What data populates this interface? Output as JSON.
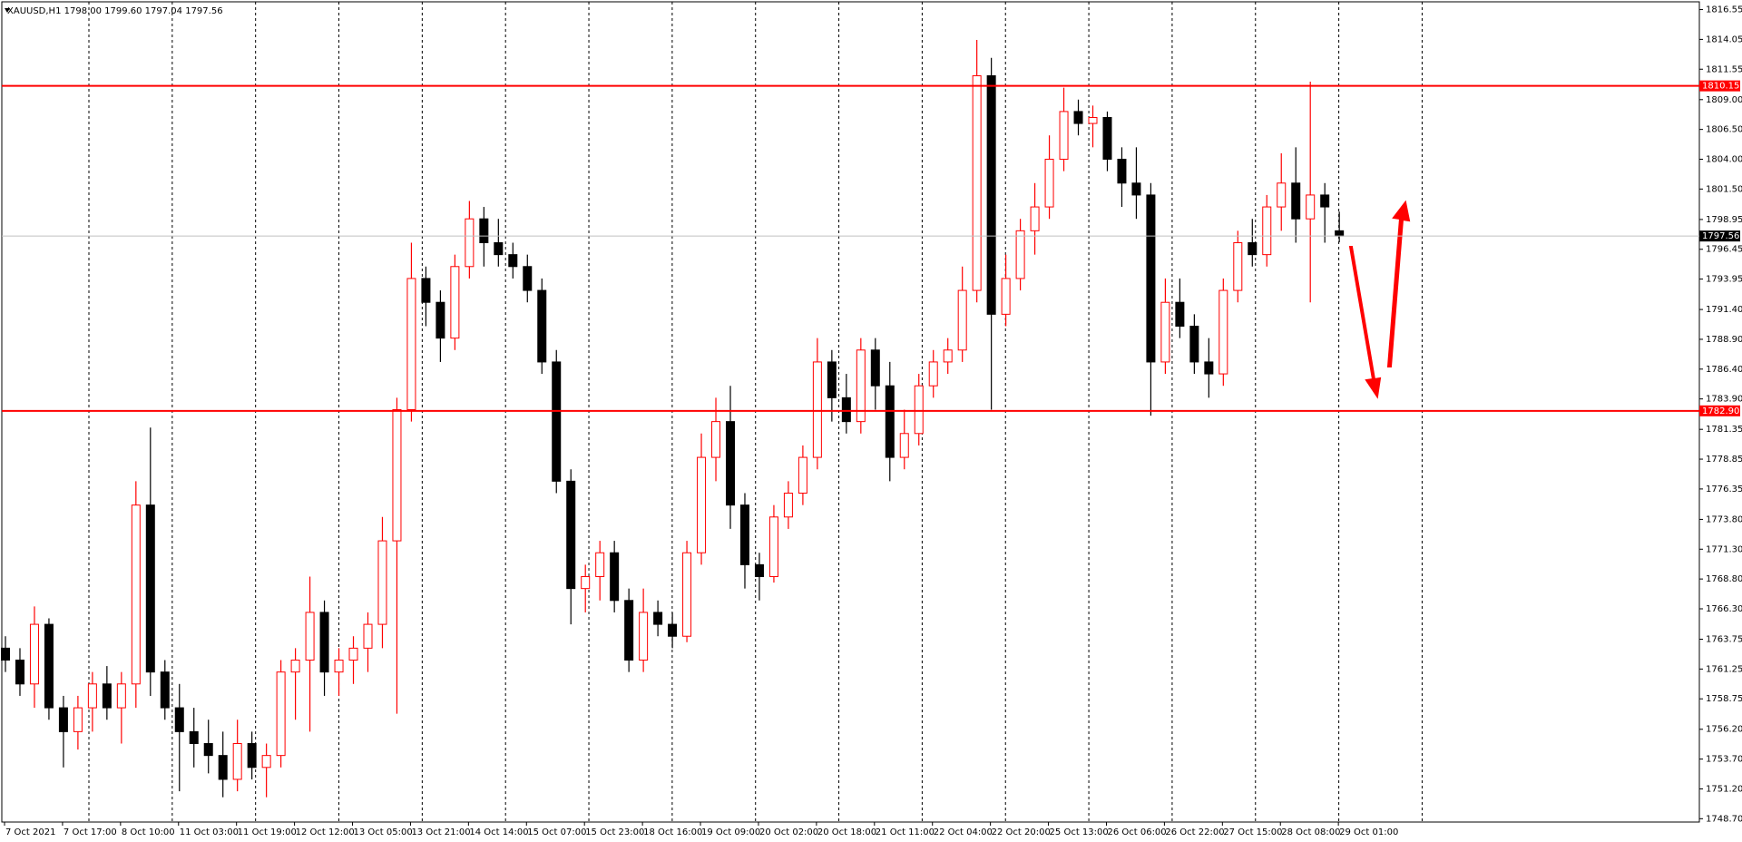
{
  "chart_data": {
    "type": "candlestick",
    "header": "XAUUSD,H1  1798.00 1799.60 1797.04 1797.56",
    "x_labels": [
      "7 Oct 2021",
      "7 Oct 17:00",
      "8 Oct 10:00",
      "11 Oct 03:00",
      "11 Oct 19:00",
      "12 Oct 12:00",
      "13 Oct 05:00",
      "13 Oct 21:00",
      "14 Oct 14:00",
      "15 Oct 07:00",
      "15 Oct 23:00",
      "18 Oct 16:00",
      "19 Oct 09:00",
      "20 Oct 02:00",
      "20 Oct 18:00",
      "21 Oct 11:00",
      "22 Oct 04:00",
      "22 Oct 20:00",
      "25 Oct 13:00",
      "26 Oct 06:00",
      "26 Oct 22:00",
      "27 Oct 15:00",
      "28 Oct 08:00",
      "29 Oct 01:00"
    ],
    "ylim": [
      1748.42,
      1817.2
    ],
    "yticks": [
      {
        "value": 1816.55,
        "label": "1816.55"
      },
      {
        "value": 1814.05,
        "label": "1814.05"
      },
      {
        "value": 1811.55,
        "label": "1811.55"
      },
      {
        "value": 1809.0,
        "label": "1809.00"
      },
      {
        "value": 1806.5,
        "label": "1806.50"
      },
      {
        "value": 1804.0,
        "label": "1804.00"
      },
      {
        "value": 1801.5,
        "label": "1801.50"
      },
      {
        "value": 1798.95,
        "label": "1798.95"
      },
      {
        "value": 1796.45,
        "label": "1796.45"
      },
      {
        "value": 1793.95,
        "label": "1793.95"
      },
      {
        "value": 1791.4,
        "label": "1791.40"
      },
      {
        "value": 1788.9,
        "label": "1788.90"
      },
      {
        "value": 1786.4,
        "label": "1786.40"
      },
      {
        "value": 1783.9,
        "label": "1783.90"
      },
      {
        "value": 1781.35,
        "label": "1781.35"
      },
      {
        "value": 1778.85,
        "label": "1778.85"
      },
      {
        "value": 1776.35,
        "label": "1776.35"
      },
      {
        "value": 1773.8,
        "label": "1773.80"
      },
      {
        "value": 1771.3,
        "label": "1771.30"
      },
      {
        "value": 1768.8,
        "label": "1768.80"
      },
      {
        "value": 1766.3,
        "label": "1766.30"
      },
      {
        "value": 1763.75,
        "label": "1763.75"
      },
      {
        "value": 1761.25,
        "label": "1761.25"
      },
      {
        "value": 1758.75,
        "label": "1758.75"
      },
      {
        "value": 1756.2,
        "label": "1756.20"
      },
      {
        "value": 1753.7,
        "label": "1753.70"
      },
      {
        "value": 1751.2,
        "label": "1751.20"
      },
      {
        "value": 1748.7,
        "label": "1748.70"
      }
    ],
    "levels": [
      {
        "value": 1810.15,
        "label": "1810.15",
        "color": "#ff0000"
      },
      {
        "value": 1782.9,
        "label": "1782.90",
        "color": "#ff0000"
      }
    ],
    "current_price": {
      "value": 1797.56,
      "label": "1797.56",
      "color": "#c0c0c0"
    },
    "up_color": "#ff0000",
    "down_color": "#000000",
    "ohlc": [
      [
        1763,
        1764,
        1761,
        1762
      ],
      [
        1762,
        1763,
        1759,
        1760
      ],
      [
        1760,
        1766.5,
        1758,
        1765
      ],
      [
        1765,
        1765.5,
        1757,
        1758
      ],
      [
        1758,
        1759,
        1753,
        1756
      ],
      [
        1756,
        1759,
        1754.5,
        1758
      ],
      [
        1758,
        1761,
        1756,
        1760
      ],
      [
        1760,
        1761.5,
        1757,
        1758
      ],
      [
        1758,
        1761,
        1755,
        1760
      ],
      [
        1760,
        1777,
        1758,
        1775
      ],
      [
        1775,
        1781.5,
        1759,
        1761
      ],
      [
        1761,
        1762,
        1757,
        1758
      ],
      [
        1758,
        1760,
        1751,
        1756
      ],
      [
        1756,
        1758,
        1753,
        1755
      ],
      [
        1755,
        1757,
        1752.5,
        1754
      ],
      [
        1754,
        1756,
        1750.5,
        1752
      ],
      [
        1752,
        1757,
        1751,
        1755
      ],
      [
        1755,
        1756,
        1752,
        1753
      ],
      [
        1753,
        1755,
        1750.5,
        1754
      ],
      [
        1754,
        1762,
        1753,
        1761
      ],
      [
        1761,
        1763,
        1757,
        1762
      ],
      [
        1762,
        1769,
        1756,
        1766
      ],
      [
        1766,
        1767,
        1759,
        1761
      ],
      [
        1761,
        1763,
        1759,
        1762
      ],
      [
        1762,
        1764,
        1760,
        1763
      ],
      [
        1763,
        1766,
        1761,
        1765
      ],
      [
        1765,
        1774,
        1763,
        1772
      ],
      [
        1772,
        1784,
        1757.5,
        1783
      ],
      [
        1783,
        1797,
        1782,
        1794
      ],
      [
        1794,
        1795,
        1790,
        1792
      ],
      [
        1792,
        1793,
        1787,
        1789
      ],
      [
        1789,
        1796,
        1788,
        1795
      ],
      [
        1795,
        1800.5,
        1794,
        1799
      ],
      [
        1799,
        1800,
        1795,
        1797
      ],
      [
        1797,
        1799,
        1795,
        1796
      ],
      [
        1796,
        1797,
        1794,
        1795
      ],
      [
        1795,
        1796,
        1792,
        1793
      ],
      [
        1793,
        1794,
        1786,
        1787
      ],
      [
        1787,
        1788,
        1776,
        1777
      ],
      [
        1777,
        1778,
        1765,
        1768
      ],
      [
        1768,
        1770,
        1766,
        1769
      ],
      [
        1769,
        1772,
        1767,
        1771
      ],
      [
        1771,
        1772,
        1766,
        1767
      ],
      [
        1767,
        1768,
        1761,
        1762
      ],
      [
        1762,
        1768,
        1761,
        1766
      ],
      [
        1766,
        1767,
        1764,
        1765
      ],
      [
        1765,
        1766,
        1763,
        1764
      ],
      [
        1764,
        1772,
        1763.5,
        1771
      ],
      [
        1771,
        1781,
        1770,
        1779
      ],
      [
        1779,
        1784,
        1777,
        1782
      ],
      [
        1782,
        1785,
        1773,
        1775
      ],
      [
        1775,
        1776,
        1768,
        1770
      ],
      [
        1770,
        1771,
        1767,
        1769
      ],
      [
        1769,
        1775,
        1768.5,
        1774
      ],
      [
        1774,
        1777,
        1773,
        1776
      ],
      [
        1776,
        1780,
        1775,
        1779
      ],
      [
        1779,
        1789,
        1778,
        1787
      ],
      [
        1787,
        1788,
        1782,
        1784
      ],
      [
        1784,
        1786,
        1781,
        1782
      ],
      [
        1782,
        1789,
        1781,
        1788
      ],
      [
        1788,
        1789,
        1783,
        1785
      ],
      [
        1785,
        1787,
        1777,
        1779
      ],
      [
        1779,
        1783,
        1778,
        1781
      ],
      [
        1781,
        1786,
        1780,
        1785
      ],
      [
        1785,
        1788,
        1784,
        1787
      ],
      [
        1787,
        1789,
        1786,
        1788
      ],
      [
        1788,
        1795,
        1787,
        1793
      ],
      [
        1793,
        1814,
        1792,
        1811
      ],
      [
        1811,
        1812.5,
        1783,
        1791
      ],
      [
        1791,
        1796,
        1790,
        1794
      ],
      [
        1794,
        1799,
        1793,
        1798
      ],
      [
        1798,
        1802,
        1796,
        1800
      ],
      [
        1800,
        1806,
        1799,
        1804
      ],
      [
        1804,
        1810,
        1803,
        1808
      ],
      [
        1808,
        1809,
        1806,
        1807
      ],
      [
        1807,
        1808.5,
        1805,
        1807.5
      ],
      [
        1807.5,
        1808,
        1803,
        1804
      ],
      [
        1804,
        1805,
        1800,
        1802
      ],
      [
        1802,
        1805,
        1799,
        1801
      ],
      [
        1801,
        1802,
        1782.5,
        1787
      ],
      [
        1787,
        1794,
        1786,
        1792
      ],
      [
        1792,
        1794,
        1789,
        1790
      ],
      [
        1790,
        1791,
        1786,
        1787
      ],
      [
        1787,
        1789,
        1784,
        1786
      ],
      [
        1786,
        1794,
        1785,
        1793
      ],
      [
        1793,
        1798,
        1792,
        1797
      ],
      [
        1797,
        1799,
        1795,
        1796
      ],
      [
        1796,
        1801,
        1795,
        1800
      ],
      [
        1800,
        1804.5,
        1798,
        1802
      ],
      [
        1802,
        1805,
        1797,
        1799
      ],
      [
        1799,
        1810.5,
        1792,
        1801
      ],
      [
        1801,
        1802,
        1797,
        1800
      ],
      [
        1798,
        1799.6,
        1797.04,
        1797.56
      ]
    ]
  }
}
